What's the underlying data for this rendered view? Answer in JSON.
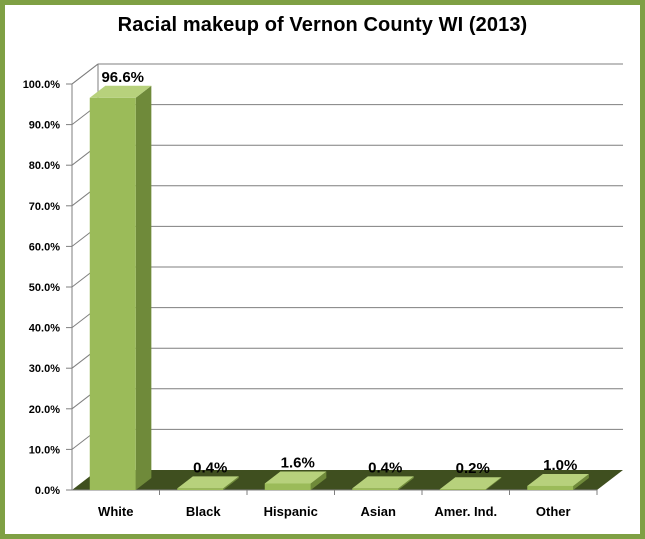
{
  "colors": {
    "frame": "#7fa044",
    "bar_front": "#9bbb59",
    "bar_side": "#6f8a3a",
    "bar_top": "#b7d17c",
    "floor": "#3f4f1f",
    "grid": "#7f7f7f"
  },
  "chart_data": {
    "type": "bar",
    "title": "Racial makeup of Vernon County WI (2013)",
    "xlabel": "",
    "ylabel": "",
    "categories": [
      "White",
      "Black",
      "Hispanic",
      "Asian",
      "Amer. Ind.",
      "Other"
    ],
    "values": [
      96.6,
      0.4,
      1.6,
      0.4,
      0.2,
      1.0
    ],
    "data_labels": [
      "96.6%",
      "0.4%",
      "1.6%",
      "0.4%",
      "0.2%",
      "1.0%"
    ],
    "ylim": [
      0,
      100
    ],
    "yticks": [
      0,
      10,
      20,
      30,
      40,
      50,
      60,
      70,
      80,
      90,
      100
    ],
    "ytick_labels": [
      "0.0%",
      "10.0%",
      "20.0%",
      "30.0%",
      "40.0%",
      "50.0%",
      "60.0%",
      "70.0%",
      "80.0%",
      "90.0%",
      "100.0%"
    ],
    "grid": true,
    "legend": "none",
    "style": "3d-column"
  }
}
